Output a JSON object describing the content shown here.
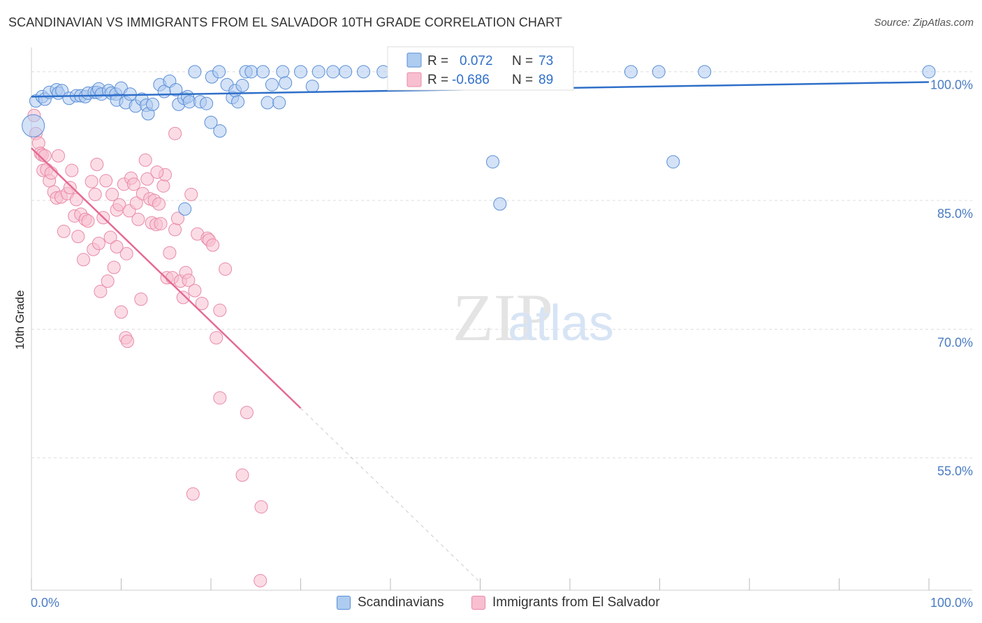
{
  "header": {
    "title": "SCANDINAVIAN VS IMMIGRANTS FROM EL SALVADOR 10TH GRADE CORRELATION CHART",
    "source": "Source: ZipAtlas.com"
  },
  "watermark": {
    "zip": "ZIP",
    "atlas": "atlas"
  },
  "stats_legend": [
    {
      "r_label": "R =",
      "r_value": "0.072",
      "n_label": "N =",
      "n_value": "73"
    },
    {
      "r_label": "R =",
      "r_value": "-0.686",
      "n_label": "N =",
      "n_value": "89"
    }
  ],
  "colors": {
    "blue_fill": "#aecbf0",
    "blue_stroke": "#5b8fd6",
    "blue_line": "#2f6fc9",
    "pink_fill": "#f7bfd0",
    "pink_stroke": "#e98aa8",
    "pink_line": "#e56b92",
    "tick_label": "#4a7cc4",
    "grid": "#dddddd"
  },
  "chart_data": {
    "type": "scatter",
    "ylabel": "10th Grade",
    "xlim": [
      0,
      100
    ],
    "ylim": [
      40,
      102.5
    ],
    "y_ticks": [
      {
        "value": 100,
        "label": "100.0%"
      },
      {
        "value": 85,
        "label": "85.0%"
      },
      {
        "value": 70,
        "label": "70.0%"
      },
      {
        "value": 55,
        "label": "55.0%"
      }
    ],
    "x_tick_labels": {
      "min": "0.0%",
      "max": "100.0%"
    },
    "grid": true,
    "series": [
      {
        "name": "Scandinavians",
        "trend": {
          "x": [
            0,
            100
          ],
          "y": [
            97.1,
            98.8
          ],
          "dashed_to": null
        },
        "points": [
          [
            0.2,
            93.7
          ],
          [
            0.5,
            96.6
          ],
          [
            1.2,
            97.1
          ],
          [
            1.5,
            96.8
          ],
          [
            2.0,
            97.6
          ],
          [
            2.8,
            97.9
          ],
          [
            3.0,
            97.5
          ],
          [
            3.4,
            97.8
          ],
          [
            4.2,
            96.9
          ],
          [
            5.0,
            97.2
          ],
          [
            5.5,
            97.2
          ],
          [
            6.0,
            97.1
          ],
          [
            6.3,
            97.5
          ],
          [
            7.0,
            97.6
          ],
          [
            7.3,
            97.6
          ],
          [
            7.5,
            98.0
          ],
          [
            7.8,
            97.4
          ],
          [
            8.6,
            97.8
          ],
          [
            8.9,
            97.5
          ],
          [
            9.4,
            97.4
          ],
          [
            9.5,
            96.7
          ],
          [
            10.0,
            98.1
          ],
          [
            10.5,
            96.4
          ],
          [
            11.0,
            97.4
          ],
          [
            11.6,
            96.0
          ],
          [
            12.3,
            96.8
          ],
          [
            12.8,
            96.1
          ],
          [
            13.0,
            95.1
          ],
          [
            13.5,
            96.2
          ],
          [
            14.3,
            98.5
          ],
          [
            14.8,
            97.7
          ],
          [
            15.4,
            98.9
          ],
          [
            16.1,
            97.9
          ],
          [
            16.4,
            96.2
          ],
          [
            17.0,
            96.9
          ],
          [
            17.4,
            97.1
          ],
          [
            18.2,
            100.0
          ],
          [
            17.1,
            84.0
          ],
          [
            17.6,
            96.5
          ],
          [
            18.8,
            96.5
          ],
          [
            19.5,
            96.3
          ],
          [
            20.1,
            99.4
          ],
          [
            20.9,
            100.0
          ],
          [
            21.0,
            93.1
          ],
          [
            20.0,
            94.1
          ],
          [
            21.8,
            98.5
          ],
          [
            22.4,
            97.0
          ],
          [
            22.7,
            97.8
          ],
          [
            23.0,
            96.5
          ],
          [
            23.5,
            98.4
          ],
          [
            23.9,
            100.0
          ],
          [
            24.5,
            100.0
          ],
          [
            25.8,
            100.0
          ],
          [
            26.3,
            96.4
          ],
          [
            26.8,
            98.5
          ],
          [
            27.6,
            96.4
          ],
          [
            28.0,
            100.0
          ],
          [
            28.3,
            98.7
          ],
          [
            30.0,
            100.0
          ],
          [
            31.3,
            98.3
          ],
          [
            32.0,
            100.0
          ],
          [
            33.6,
            100.0
          ],
          [
            35.0,
            100.0
          ],
          [
            37.0,
            100.0
          ],
          [
            39.2,
            100.0
          ],
          [
            41.0,
            100.0
          ],
          [
            43.5,
            100.0
          ],
          [
            47.3,
            100.0
          ],
          [
            51.4,
            89.5
          ],
          [
            52.2,
            84.6
          ],
          [
            66.8,
            100.0
          ],
          [
            69.9,
            100.0
          ],
          [
            71.5,
            89.5
          ],
          [
            75.0,
            100.0
          ],
          [
            100.0,
            100.0
          ]
        ]
      },
      {
        "name": "Immigrants from El Salvador",
        "trend": {
          "x": [
            0,
            30
          ],
          "y": [
            91.1,
            60.8
          ],
          "dashed_to": [
            50,
            40.5
          ]
        },
        "points": [
          [
            0.3,
            94.9
          ],
          [
            0.5,
            92.8
          ],
          [
            0.8,
            91.7
          ],
          [
            1.0,
            90.5
          ],
          [
            1.2,
            90.3
          ],
          [
            1.5,
            90.2
          ],
          [
            1.3,
            88.5
          ],
          [
            1.7,
            88.6
          ],
          [
            2.0,
            87.3
          ],
          [
            2.2,
            88.2
          ],
          [
            2.5,
            86.0
          ],
          [
            2.8,
            85.3
          ],
          [
            3.0,
            90.2
          ],
          [
            3.3,
            85.4
          ],
          [
            3.6,
            81.4
          ],
          [
            4.0,
            85.8
          ],
          [
            4.3,
            86.5
          ],
          [
            4.5,
            88.5
          ],
          [
            4.8,
            83.2
          ],
          [
            5.0,
            85.1
          ],
          [
            5.2,
            80.8
          ],
          [
            5.5,
            83.4
          ],
          [
            5.8,
            78.1
          ],
          [
            6.0,
            82.8
          ],
          [
            6.3,
            82.6
          ],
          [
            6.7,
            87.2
          ],
          [
            6.9,
            79.3
          ],
          [
            7.1,
            85.7
          ],
          [
            7.3,
            89.2
          ],
          [
            7.5,
            80.0
          ],
          [
            7.7,
            74.4
          ],
          [
            8.0,
            83.0
          ],
          [
            8.3,
            87.3
          ],
          [
            8.5,
            75.6
          ],
          [
            8.8,
            80.7
          ],
          [
            9.0,
            85.7
          ],
          [
            9.2,
            77.2
          ],
          [
            9.5,
            83.9
          ],
          [
            9.8,
            84.5
          ],
          [
            10.0,
            72.0
          ],
          [
            10.3,
            86.9
          ],
          [
            10.6,
            78.8
          ],
          [
            10.9,
            83.8
          ],
          [
            11.1,
            87.6
          ],
          [
            11.4,
            86.9
          ],
          [
            11.7,
            84.7
          ],
          [
            11.9,
            82.8
          ],
          [
            12.2,
            73.5
          ],
          [
            12.4,
            85.8
          ],
          [
            12.7,
            89.7
          ],
          [
            12.9,
            87.5
          ],
          [
            13.2,
            85.2
          ],
          [
            13.4,
            82.4
          ],
          [
            13.7,
            85.0
          ],
          [
            13.9,
            82.2
          ],
          [
            14.2,
            84.6
          ],
          [
            14.4,
            82.3
          ],
          [
            14.7,
            86.7
          ],
          [
            14.9,
            88.0
          ],
          [
            15.1,
            76.0
          ],
          [
            15.4,
            78.9
          ],
          [
            15.7,
            76.0
          ],
          [
            16.0,
            81.6
          ],
          [
            16.3,
            82.9
          ],
          [
            16.6,
            75.6
          ],
          [
            16.9,
            73.7
          ],
          [
            17.2,
            76.6
          ],
          [
            17.5,
            75.7
          ],
          [
            17.8,
            85.7
          ],
          [
            18.2,
            74.5
          ],
          [
            18.5,
            81.1
          ],
          [
            19.0,
            73.0
          ],
          [
            16.0,
            92.8
          ],
          [
            10.5,
            69.0
          ],
          [
            10.7,
            68.6
          ],
          [
            19.6,
            80.6
          ],
          [
            19.8,
            80.4
          ],
          [
            20.2,
            79.8
          ],
          [
            20.6,
            69.0
          ],
          [
            21.0,
            72.2
          ],
          [
            21.6,
            77.0
          ],
          [
            21.0,
            62.0
          ],
          [
            24.0,
            60.3
          ],
          [
            23.5,
            53.0
          ],
          [
            18.0,
            50.8
          ],
          [
            25.6,
            49.3
          ],
          [
            25.5,
            40.7
          ],
          [
            14.0,
            88.3
          ],
          [
            9.5,
            79.6
          ]
        ]
      }
    ]
  },
  "bottom_legend": [
    "Scandinavians",
    "Immigrants from El Salvador"
  ]
}
